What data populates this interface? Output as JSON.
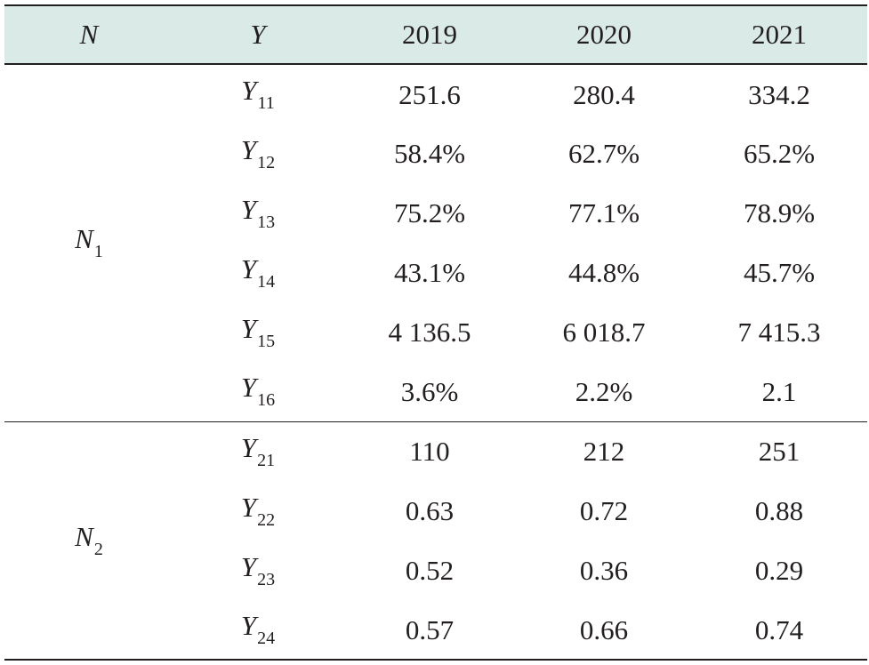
{
  "table": {
    "headers": [
      {
        "text": "N",
        "italic": true
      },
      {
        "text": "Y",
        "italic": true
      },
      {
        "text": "2019",
        "italic": false
      },
      {
        "text": "2020",
        "italic": false
      },
      {
        "text": "2021",
        "italic": false
      }
    ],
    "groups": [
      {
        "symbol": "N",
        "subscript": "1",
        "rows": [
          {
            "symbol": "Y",
            "subscript": "11",
            "values": [
              "251.6",
              "280.4",
              "334.2"
            ]
          },
          {
            "symbol": "Y",
            "subscript": "12",
            "values": [
              "58.4%",
              "62.7%",
              "65.2%"
            ]
          },
          {
            "symbol": "Y",
            "subscript": "13",
            "values": [
              "75.2%",
              "77.1%",
              "78.9%"
            ]
          },
          {
            "symbol": "Y",
            "subscript": "14",
            "values": [
              "43.1%",
              "44.8%",
              "45.7%"
            ]
          },
          {
            "symbol": "Y",
            "subscript": "15",
            "values": [
              "4 136.5",
              "6 018.7",
              "7 415.3"
            ]
          },
          {
            "symbol": "Y",
            "subscript": "16",
            "values": [
              "3.6%",
              "2.2%",
              "2.1"
            ]
          }
        ]
      },
      {
        "symbol": "N",
        "subscript": "2",
        "rows": [
          {
            "symbol": "Y",
            "subscript": "21",
            "values": [
              "110",
              "212",
              "251"
            ]
          },
          {
            "symbol": "Y",
            "subscript": "22",
            "values": [
              "0.63",
              "0.72",
              "0.88"
            ]
          },
          {
            "symbol": "Y",
            "subscript": "23",
            "values": [
              "0.52",
              "0.36",
              "0.29"
            ]
          },
          {
            "symbol": "Y",
            "subscript": "24",
            "values": [
              "0.57",
              "0.66",
              "0.74"
            ]
          }
        ]
      }
    ],
    "colors": {
      "header_background": "#daeae6",
      "text": "#231f20",
      "rule": "#231f20"
    }
  }
}
